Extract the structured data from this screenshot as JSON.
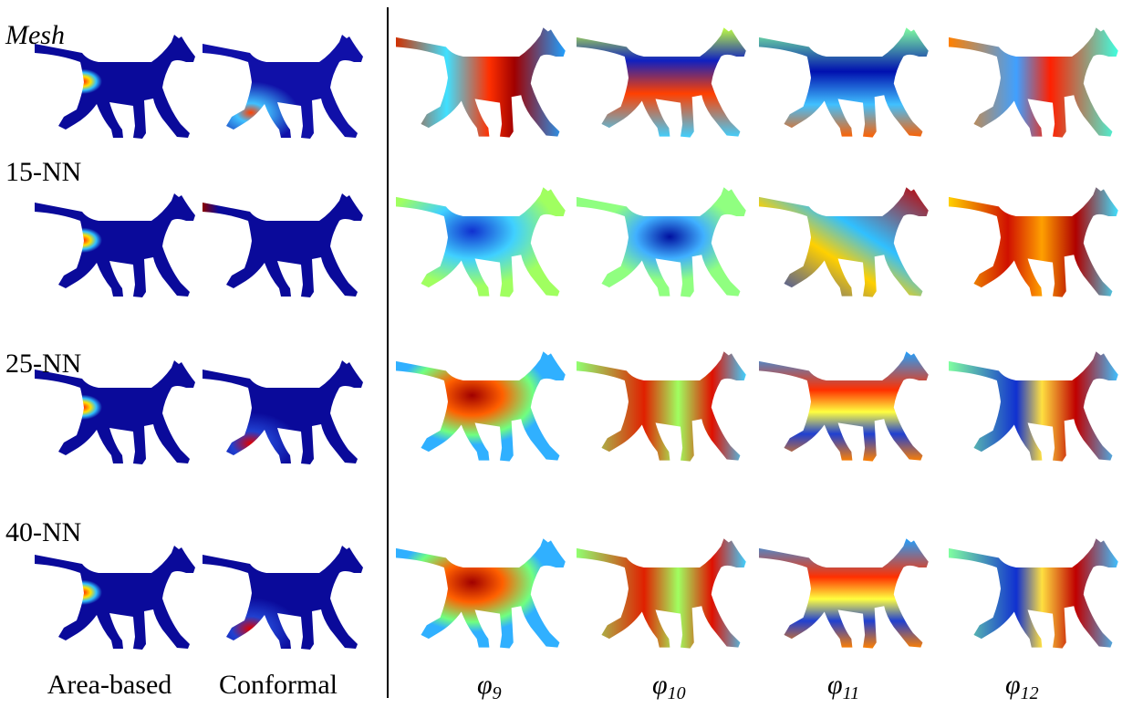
{
  "row_labels": [
    "Mesh",
    "15-NN",
    "25-NN",
    "40-NN"
  ],
  "left_columns": [
    "Area-based",
    "Conformal"
  ],
  "right_columns": [
    {
      "base": "φ",
      "sub": "9"
    },
    {
      "base": "φ",
      "sub": "10"
    },
    {
      "base": "φ",
      "sub": "11"
    },
    {
      "base": "φ",
      "sub": "12"
    }
  ]
}
